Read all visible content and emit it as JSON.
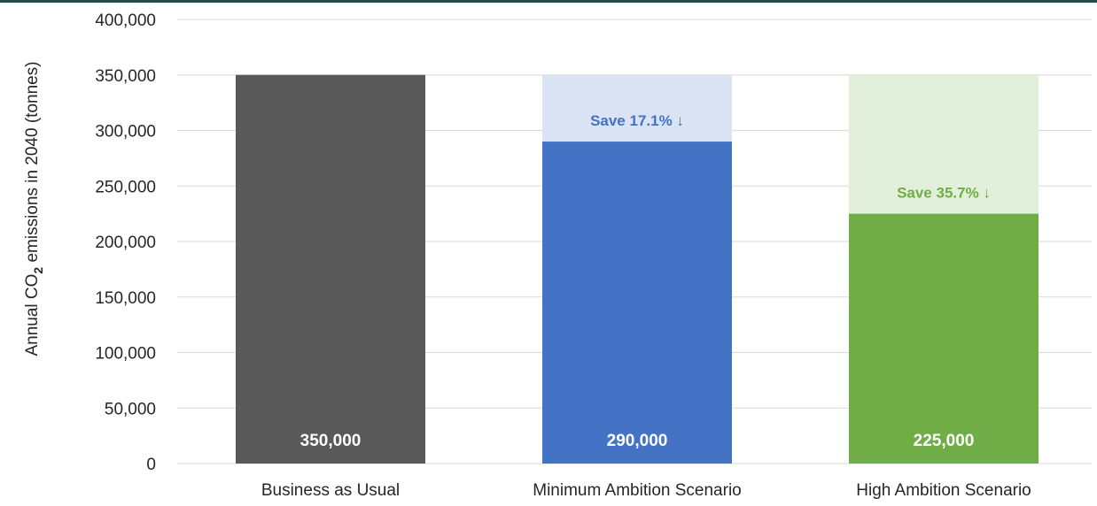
{
  "chart_data": {
    "type": "bar",
    "categories": [
      "Business as Usual",
      "Minimum Ambition Scenario",
      "High Ambition Scenario"
    ],
    "values": [
      350000,
      290000,
      225000
    ],
    "value_labels": [
      "350,000",
      "290,000",
      "225,000"
    ],
    "baseline": 350000,
    "savings": [
      null,
      {
        "label": "Save 17.1% ↓",
        "color": "#4472c4",
        "band_color": "#dae3f3"
      },
      {
        "label": "Save 35.7% ↓",
        "color": "#70ad47",
        "band_color": "#e2efda"
      }
    ],
    "bar_colors": [
      "#595959",
      "#4472c4",
      "#70ad47"
    ],
    "ylabel_parts": [
      "Annual CO",
      "2",
      " emissions in 2040 (tonnes)"
    ],
    "ylim": [
      0,
      400000
    ],
    "yticks": [
      0,
      50000,
      100000,
      150000,
      200000,
      250000,
      300000,
      350000,
      400000
    ],
    "ytick_labels": [
      "0",
      "50,000",
      "100,000",
      "150,000",
      "200,000",
      "250,000",
      "300,000",
      "350,000",
      "400,000"
    ],
    "grid": true,
    "gridline_color": "#d9d9d9"
  }
}
